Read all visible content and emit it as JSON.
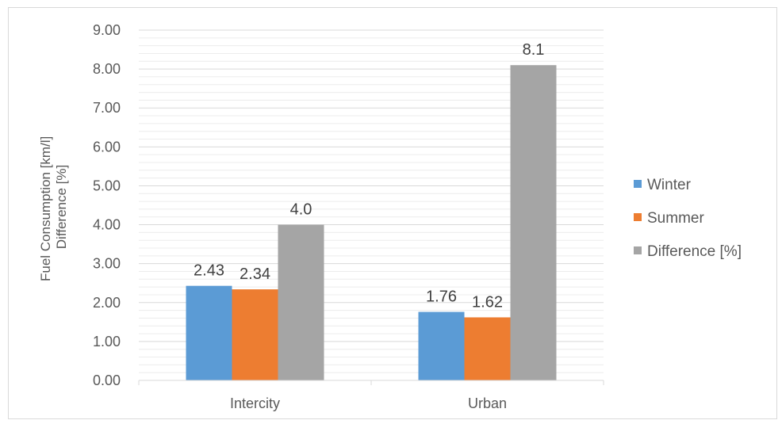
{
  "chart_data": {
    "type": "bar",
    "categories": [
      "Intercity",
      "Urban"
    ],
    "series": [
      {
        "name": "Winter",
        "values": [
          2.43,
          1.76
        ],
        "labels": [
          "2.43",
          "1.76"
        ],
        "color": "#5b9bd5"
      },
      {
        "name": "Summer",
        "values": [
          2.34,
          1.62
        ],
        "labels": [
          "2.34",
          "1.62"
        ],
        "color": "#ed7d31"
      },
      {
        "name": "Difference [%]",
        "values": [
          4.0,
          8.1
        ],
        "labels": [
          "4.0",
          "8.1"
        ],
        "color": "#a5a5a5"
      }
    ],
    "ylabel_lines": [
      "Fuel Consumption [km/l]",
      "Difference [%]"
    ],
    "xlabel": "",
    "ylim": [
      0,
      9
    ],
    "y_ticks": [
      "0.00",
      "1.00",
      "2.00",
      "3.00",
      "4.00",
      "5.00",
      "6.00",
      "7.00",
      "8.00",
      "9.00"
    ],
    "grid": true,
    "legend_position": "right"
  }
}
